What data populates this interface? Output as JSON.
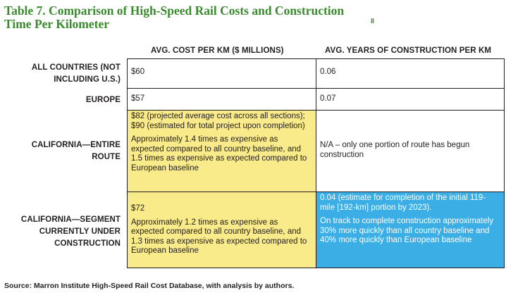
{
  "title": {
    "text": "Table 7. Comparison of High-Speed Rail Costs and Construction Time Per Kilometer",
    "footnote": "8"
  },
  "columns": {
    "cost": "AVG. COST PER KM ($ MILLIONS)",
    "years": "AVG. YEARS OF CONSTRUCTION PER KM"
  },
  "rows": [
    {
      "label": "ALL COUNTRIES (NOT INCLUDING U.S.)",
      "cost": [
        "$60"
      ],
      "years": [
        "0.06"
      ]
    },
    {
      "label": "EUROPE",
      "cost": [
        "$57"
      ],
      "years": [
        "0.07"
      ]
    },
    {
      "label": "CALIFORNIA—ENTIRE ROUTE",
      "cost": [
        "$82 (projected average cost across all sections); $90 (estimated for total project upon completion)",
        "Approximately 1.4 times as expensive as expected compared to all country baseline, and 1.5 times as expensive as expected compared to European baseline"
      ],
      "years": [
        "N/A – only one portion of route has begun construction"
      ]
    },
    {
      "label": "CALIFORNIA—SEGMENT CURRENTLY UNDER CONSTRUCTION",
      "cost": [
        "$72",
        "Approximately 1.2 times as expensive as expected compared to all country baseline, and 1.3 times as expensive as expected compared to European baseline"
      ],
      "years": [
        "0.04 (estimate for completion of the initial 119-mile [192-km] portion by 2023).",
        "On track to complete construction approximately 30% more quickly than all country baseline and 40% more quickly than European baseline"
      ]
    }
  ],
  "source": "Source: Marron Institute High-Speed Rail Cost Database, with analysis by authors.",
  "colors": {
    "title_green": "#3a8a2e",
    "highlight_yellow": "#f9ea8a",
    "highlight_blue": "#3caee6"
  }
}
